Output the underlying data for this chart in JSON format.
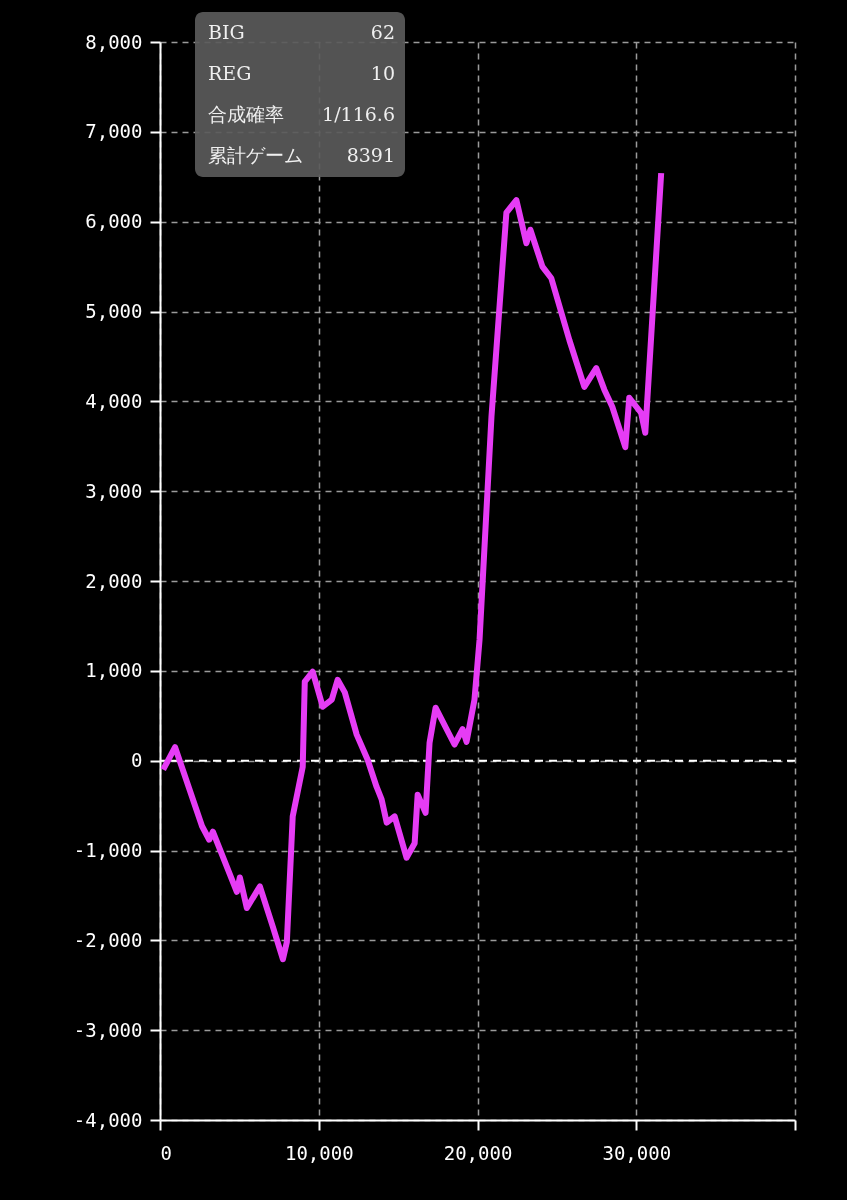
{
  "chart_data": {
    "type": "line",
    "x": [
      200,
      950,
      2650,
      3100,
      3330,
      4840,
      5030,
      5470,
      6290,
      7110,
      7740,
      7990,
      8360,
      8990,
      9120,
      9620,
      10250,
      10820,
      11190,
      11640,
      12390,
      13080,
      13640,
      13960,
      14280,
      14780,
      15530,
      16040,
      16230,
      16730,
      16980,
      17360,
      18550,
      19060,
      19310,
      19810,
      20130,
      20880,
      21820,
      22450,
      23080,
      23330,
      24090,
      24650,
      25790,
      26730,
      27480,
      27990,
      28490,
      29310,
      29560,
      30310,
      30570,
      31570
    ],
    "series": [
      {
        "color": "#e63cf5",
        "values": [
          -100,
          150,
          -730,
          -880,
          -790,
          -1460,
          -1300,
          -1640,
          -1400,
          -1850,
          -2210,
          -2020,
          -620,
          -70,
          880,
          990,
          600,
          680,
          900,
          760,
          290,
          10,
          -290,
          -430,
          -690,
          -620,
          -1080,
          -920,
          -380,
          -580,
          200,
          590,
          180,
          350,
          210,
          680,
          1350,
          3830,
          6100,
          6240,
          5760,
          5910,
          5500,
          5370,
          4680,
          4160,
          4370,
          4130,
          3940,
          3490,
          4040,
          3870,
          3650,
          6540
        ]
      }
    ],
    "xlim": [
      0,
      40000
    ],
    "xticks": [
      0,
      {
        "value": 10000,
        "label": "10,000"
      },
      {
        "value": 20000,
        "label": "20,000"
      },
      {
        "value": 30000,
        "label": "30,000"
      },
      {
        "value": 40000,
        "label": null
      }
    ],
    "ylim": [
      -4000,
      8000
    ],
    "yticks": [
      {
        "value": -4000,
        "label": "-4,000"
      },
      {
        "value": -3000,
        "label": "-3,000"
      },
      {
        "value": -2000,
        "label": "-2,000"
      },
      {
        "value": -1000,
        "label": "-1,000"
      },
      0,
      {
        "value": 1000,
        "label": "1,000"
      },
      {
        "value": 2000,
        "label": "2,000"
      },
      {
        "value": 3000,
        "label": "3,000"
      },
      {
        "value": 4000,
        "label": "4,000"
      },
      {
        "value": 5000,
        "label": "5,000"
      },
      {
        "value": 6000,
        "label": "6,000"
      },
      {
        "value": 7000,
        "label": "7,000"
      },
      {
        "value": 8000,
        "label": "8,000"
      }
    ],
    "grid": true,
    "marker": "none",
    "line_style": "solid",
    "ref_lines": [
      {
        "axis": "y",
        "value": 0,
        "color": "#ffffff",
        "line_style": "dashed"
      }
    ],
    "annotations": [
      "BIG",
      "62",
      "REG",
      "10",
      "合成確率",
      "1/116.6",
      "累計ゲーム",
      "8391"
    ]
  }
}
